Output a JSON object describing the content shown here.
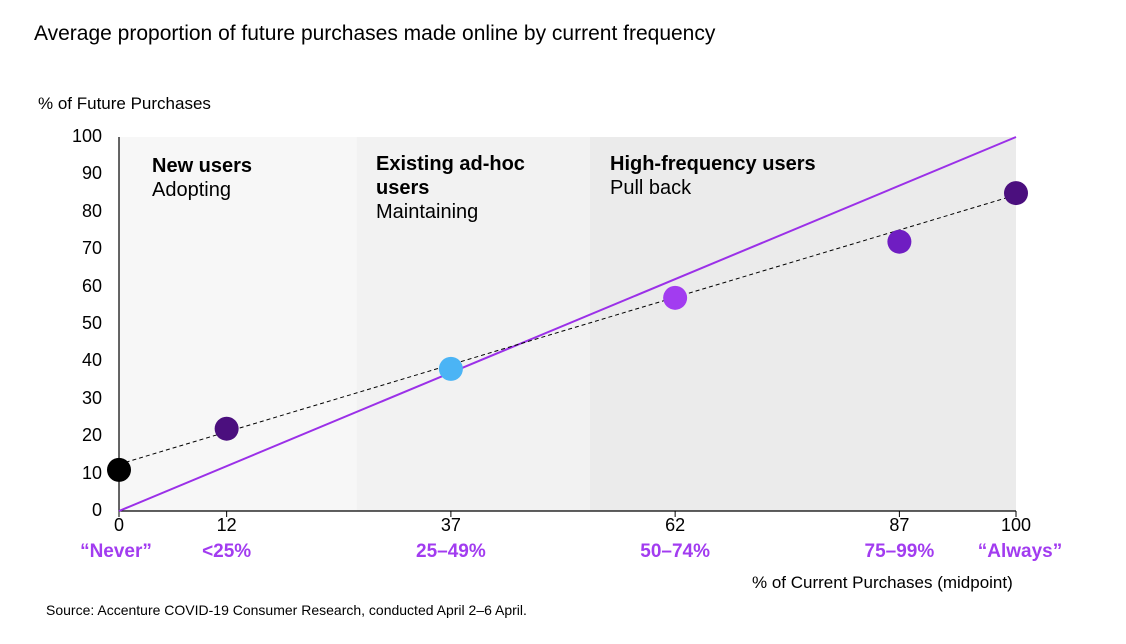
{
  "title": "Average proportion of future purchases made online by current frequency",
  "source": "Source: Accenture COVID-19 Consumer Research, conducted April 2–6 April.",
  "chart_data": {
    "type": "scatter",
    "title": "Average proportion of future purchases made online by current frequency",
    "ylabel": "% of Future Purchases",
    "xlabel": "% of Current Purchases (midpoint)",
    "xlim": [
      0,
      100
    ],
    "ylim": [
      0,
      100
    ],
    "y_ticks": [
      0,
      10,
      20,
      30,
      40,
      50,
      60,
      70,
      80,
      90,
      100
    ],
    "x_ticks": [
      0,
      12,
      37,
      62,
      87,
      100
    ],
    "x_categories": [
      {
        "x": 0,
        "label": "“Never”"
      },
      {
        "x": 12,
        "label": "<25%"
      },
      {
        "x": 37,
        "label": "25–49%"
      },
      {
        "x": 62,
        "label": "50–74%"
      },
      {
        "x": 87,
        "label": "75–99%"
      },
      {
        "x": 100,
        "label": "“Always”"
      }
    ],
    "points": [
      {
        "x": 0,
        "y": 11,
        "color": "#000000"
      },
      {
        "x": 12,
        "y": 22,
        "color": "#4b0f7e"
      },
      {
        "x": 37,
        "y": 38,
        "color": "#4bb4f5"
      },
      {
        "x": 62,
        "y": 57,
        "color": "#a23cf0"
      },
      {
        "x": 87,
        "y": 72,
        "color": "#6f1dc2"
      },
      {
        "x": 100,
        "y": 85,
        "color": "#4b0f7e"
      }
    ],
    "reference_line": {
      "from": [
        0,
        0
      ],
      "to": [
        100,
        100
      ],
      "color": "#9b30e8",
      "style": "solid"
    },
    "trend_line": {
      "from": [
        0,
        12.5
      ],
      "to": [
        100,
        84.5
      ],
      "color": "#000000",
      "style": "dashed"
    },
    "zones": [
      {
        "x_start": 0,
        "x_end": 26.5,
        "color": "#f7f7f7",
        "heading": "New users",
        "subtitle": "Adopting"
      },
      {
        "x_start": 26.5,
        "x_end": 52.5,
        "color": "#f2f2f2",
        "heading": "Existing ad-hoc users",
        "subtitle": "Maintaining"
      },
      {
        "x_start": 52.5,
        "x_end": 100,
        "color": "#ebebeb",
        "heading": "High-frequency users",
        "subtitle": "Pull back"
      }
    ]
  }
}
